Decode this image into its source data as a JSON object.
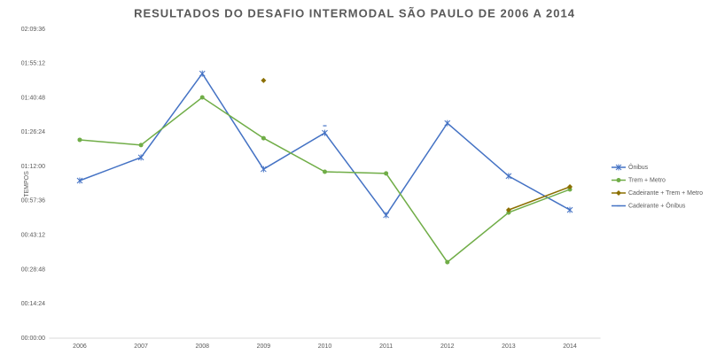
{
  "chart_data": {
    "type": "line",
    "title": "RESULTADOS DO DESAFIO INTERMODAL SÃO PAULO DE 2006 A 2014",
    "y_label": "TEMPOS",
    "categories": [
      "2006",
      "2007",
      "2008",
      "2009",
      "2010",
      "2011",
      "2012",
      "2013",
      "2014"
    ],
    "series": [
      {
        "name": "Ônibus",
        "color": "#4472c4",
        "marker": "star",
        "values": [
          66.1,
          75.8,
          111.0,
          70.9,
          86.1,
          51.6,
          90.2,
          68.0,
          53.8
        ]
      },
      {
        "name": "Trem + Metro",
        "color": "#70ad47",
        "marker": "circle",
        "values": [
          83.2,
          81.0,
          101.0,
          83.9,
          69.8,
          69.1,
          31.9,
          52.7,
          62.4
        ]
      },
      {
        "name": "Cadeirante + Trem + Metro",
        "color": "#8b6f00",
        "marker": "diamond",
        "values": [
          null,
          null,
          null,
          108.1,
          null,
          null,
          null,
          53.8,
          63.5
        ]
      },
      {
        "name": "Cadeirante + Ônibus",
        "color": "#4472c4",
        "marker": "dash",
        "values": [
          null,
          null,
          null,
          null,
          89.1,
          null,
          null,
          null,
          null
        ]
      }
    ],
    "ylim": [
      0,
      129.6
    ],
    "yticks": [
      {
        "value": 0,
        "label": "00:00:00"
      },
      {
        "value": 14.4,
        "label": "00:14:24"
      },
      {
        "value": 28.8,
        "label": "00:28:48"
      },
      {
        "value": 43.2,
        "label": "00:43:12"
      },
      {
        "value": 57.6,
        "label": "00:57:36"
      },
      {
        "value": 72,
        "label": "01:12:00"
      },
      {
        "value": 86.4,
        "label": "01:26:24"
      },
      {
        "value": 100.8,
        "label": "01:40:48"
      },
      {
        "value": 115.2,
        "label": "01:55:12"
      },
      {
        "value": 129.6,
        "label": "02:09:36"
      }
    ],
    "grid": false,
    "legend": "right"
  }
}
